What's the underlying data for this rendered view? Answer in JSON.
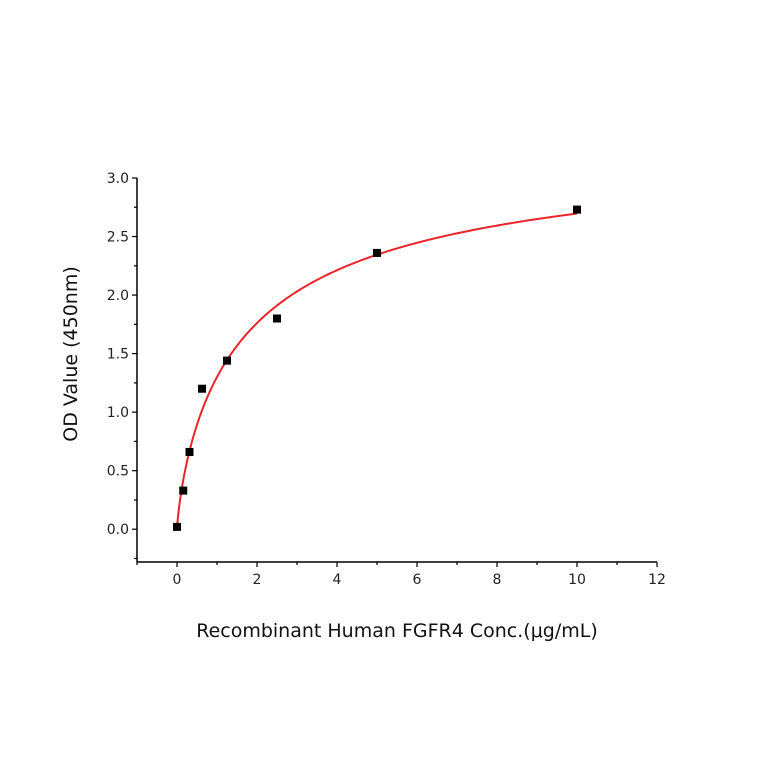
{
  "chart_data": {
    "type": "scatter",
    "title": "",
    "xlabel": "Recombinant Human FGFR4 Conc.(μg/mL)",
    "ylabel": "OD Value (450nm)",
    "xlim": [
      -1,
      12
    ],
    "ylim": [
      -0.28,
      3.0
    ],
    "xticks": [
      "0",
      "2",
      "4",
      "6",
      "8",
      "10",
      "12"
    ],
    "yticks": [
      "0.0",
      "0.5",
      "1.0",
      "1.5",
      "2.0",
      "2.5",
      "3.0"
    ],
    "grid": false,
    "legend": "none",
    "series": [
      {
        "x": [
          0,
          0.156,
          0.3125,
          0.625,
          1.25,
          2.5,
          5,
          10
        ],
        "y": [
          0.02,
          0.33,
          0.66,
          1.2,
          1.44,
          1.8,
          2.36,
          2.73
        ],
        "marker": "square",
        "color": "#000000",
        "fit_line_color": "#e8262a"
      }
    ]
  }
}
